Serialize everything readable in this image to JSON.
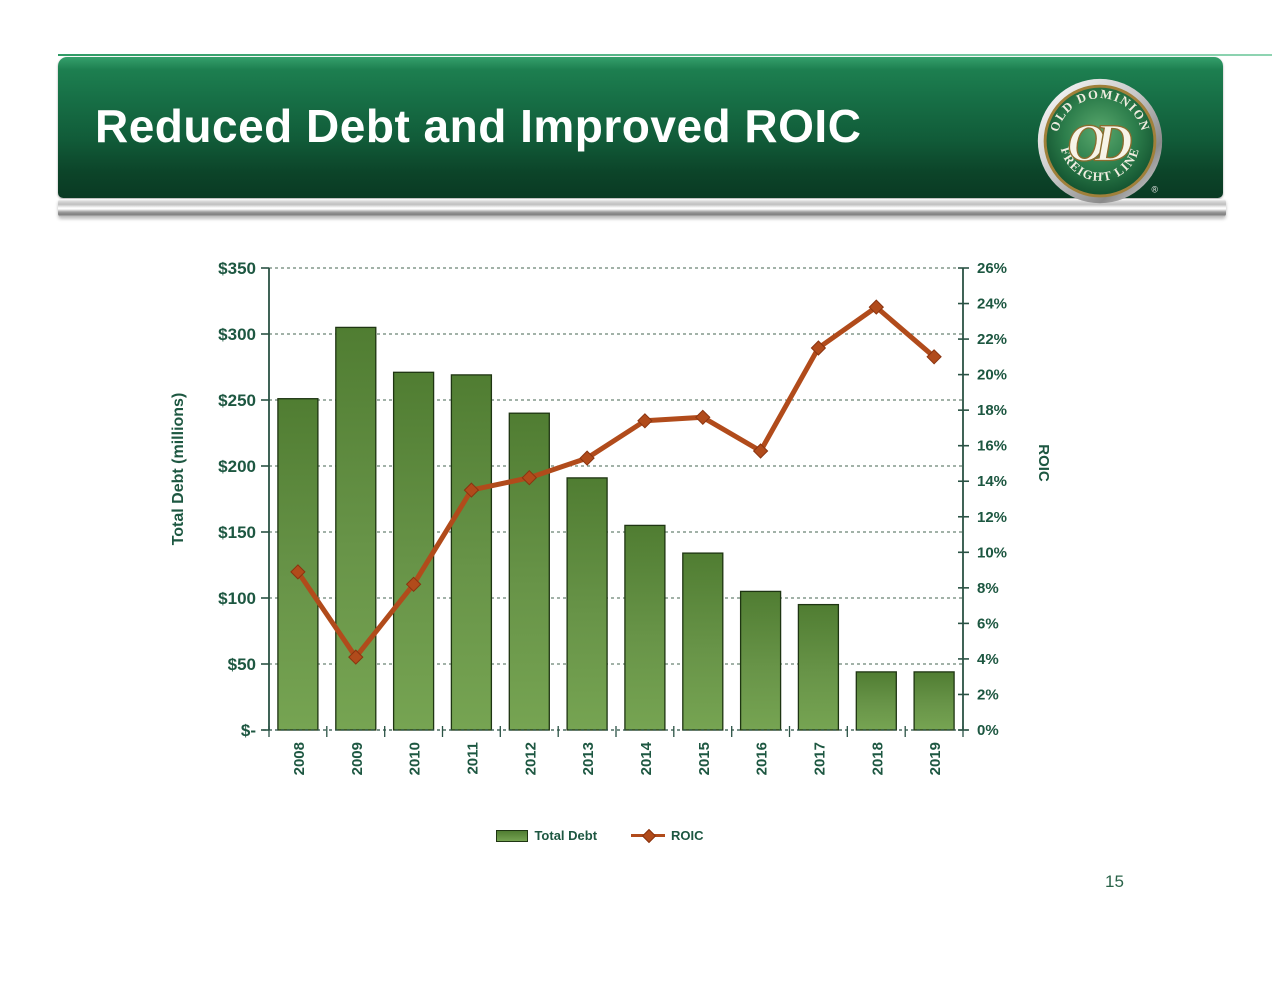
{
  "header": {
    "title": "Reduced Debt and Improved ROIC",
    "logo": {
      "arc_top": "OLD DOMINION",
      "arc_bottom": "FREIGHT LINE",
      "monogram_o": "O",
      "monogram_d": "D",
      "registered": "®"
    }
  },
  "footer": {
    "page_number": "15"
  },
  "chart_data": {
    "type": "combo-bar-line",
    "categories": [
      "2008",
      "2009",
      "2010",
      "2011",
      "2012",
      "2013",
      "2014",
      "2015",
      "2016",
      "2017",
      "2018",
      "2019"
    ],
    "series": [
      {
        "name": "Total Debt",
        "type": "bar",
        "axis": "left",
        "unit": "$ millions",
        "values": [
          251,
          305,
          271,
          269,
          240,
          191,
          155,
          134,
          105,
          95,
          44,
          44
        ]
      },
      {
        "name": "ROIC",
        "type": "line",
        "axis": "right",
        "unit": "%",
        "values": [
          8.9,
          4.1,
          8.2,
          13.5,
          14.2,
          15.3,
          17.4,
          17.6,
          15.7,
          21.5,
          23.8,
          21.0
        ]
      }
    ],
    "left_axis": {
      "title": "Total Debt (millions)",
      "min": 0,
      "max": 350,
      "tick_step": 50,
      "tick_labels": [
        "$350",
        "$300",
        "$250",
        "$200",
        "$150",
        "$100",
        "$50",
        "$-"
      ]
    },
    "right_axis": {
      "title": "ROIC",
      "min": 0,
      "max": 26,
      "tick_step": 2,
      "tick_labels": [
        "26%",
        "24%",
        "22%",
        "20%",
        "18%",
        "16%",
        "14%",
        "12%",
        "10%",
        "8%",
        "6%",
        "4%",
        "2%",
        "0%"
      ]
    },
    "legend": [
      {
        "label": "Total Debt",
        "marker": "green-bar-swatch"
      },
      {
        "label": "ROIC",
        "marker": "orange-line-diamond"
      }
    ],
    "grid": "dashed horizontal lines at every left-axis tick",
    "legend_position": "bottom-center"
  },
  "colors": {
    "bar_top": "#507d32",
    "bar_mid": "#689448",
    "bar_bottom": "#76a452",
    "bar_border": "#1e3512",
    "line": "#b14b1b",
    "line_dark": "#8a3410",
    "grid": "#446452",
    "axis": "#2a5244",
    "label_text": "#1d5741",
    "header_green": "#176f46",
    "title_text": "#ffffff"
  }
}
